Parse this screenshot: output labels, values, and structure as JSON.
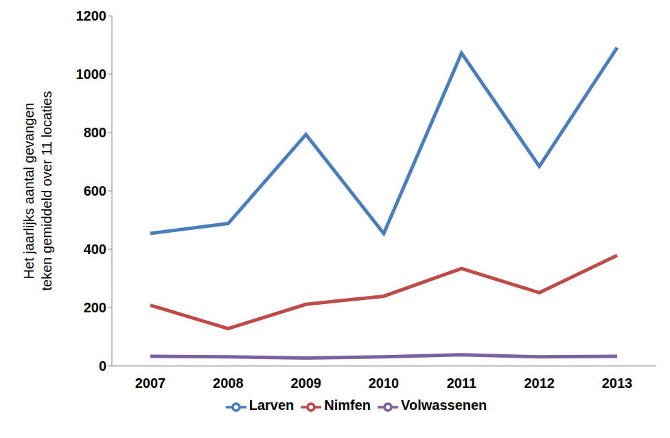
{
  "chart_data": {
    "type": "line",
    "y_label": "Het jaarlijks aantal gevangen teken gemiddeld over 11 locaties",
    "categories": [
      "2007",
      "2008",
      "2009",
      "2010",
      "2011",
      "2012",
      "2013"
    ],
    "series": [
      {
        "name": "Larven",
        "color": "#4a7ebb",
        "values": [
          454,
          488,
          793,
          454,
          1072,
          684,
          1091
        ]
      },
      {
        "name": "Nimfen",
        "color": "#be4b48",
        "values": [
          208,
          128,
          211,
          239,
          334,
          251,
          379
        ]
      },
      {
        "name": "Volwassenen",
        "color": "#7d60a0",
        "values": [
          33,
          31,
          27,
          31,
          38,
          31,
          33
        ]
      }
    ],
    "ylim": [
      0,
      1200
    ],
    "yticks": [
      0,
      200,
      400,
      600,
      800,
      1000,
      1200
    ],
    "grid": false,
    "legend": "bottom"
  }
}
